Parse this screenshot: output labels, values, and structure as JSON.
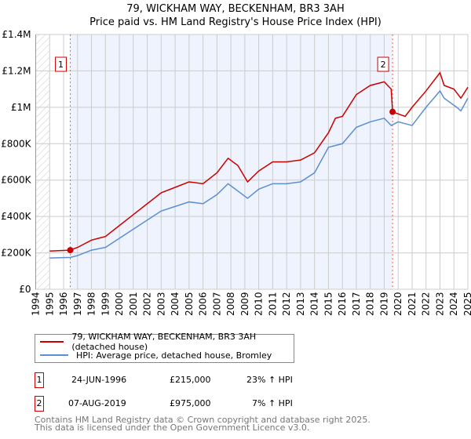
{
  "title_line1": "79, WICKHAM WAY, BECKENHAM, BR3 3AH",
  "title_line2": "Price paid vs. HM Land Registry's House Price Index (HPI)",
  "colors": {
    "property": "#cc0000",
    "hpi": "#5b8fd0",
    "shade": "#eef3fd"
  },
  "chart_data": {
    "type": "line",
    "title": "Price paid vs. HM Land Registry's House Price Index (HPI)",
    "xlim": [
      1994,
      2025
    ],
    "ylim": [
      0,
      1400000
    ],
    "x_ticks": [
      "1994",
      "1995",
      "1996",
      "1997",
      "1998",
      "1999",
      "2000",
      "2001",
      "2002",
      "2003",
      "2004",
      "2005",
      "2006",
      "2007",
      "2008",
      "2009",
      "2010",
      "2011",
      "2012",
      "2013",
      "2014",
      "2015",
      "2016",
      "2017",
      "2018",
      "2019",
      "2020",
      "2021",
      "2022",
      "2023",
      "2024",
      "2025"
    ],
    "y_ticks": [
      {
        "v": 0,
        "label": "£0"
      },
      {
        "v": 200000,
        "label": "£200K"
      },
      {
        "v": 400000,
        "label": "£400K"
      },
      {
        "v": 600000,
        "label": "£600K"
      },
      {
        "v": 800000,
        "label": "£800K"
      },
      {
        "v": 1000000,
        "label": "£1M"
      },
      {
        "v": 1200000,
        "label": "£1.2M"
      },
      {
        "v": 1400000,
        "label": "£1.4M"
      }
    ],
    "series": [
      {
        "name": "79, WICKHAM WAY, BECKENHAM, BR3 3AH (detached house)",
        "x": [
          1995,
          1996.48,
          1997,
          1998,
          1999,
          2000,
          2001,
          2002,
          2003,
          2004,
          2005,
          2006,
          2007,
          2007.8,
          2008.5,
          2009.2,
          2010,
          2011,
          2012,
          2013,
          2014,
          2015,
          2015.5,
          2016,
          2017,
          2018,
          2019,
          2019.5,
          2019.6,
          2020.5,
          2021,
          2022,
          2023,
          2023.3,
          2024,
          2024.5,
          2025
        ],
        "y": [
          210000,
          215000,
          230000,
          270000,
          290000,
          350000,
          410000,
          470000,
          530000,
          560000,
          590000,
          580000,
          640000,
          720000,
          680000,
          590000,
          650000,
          700000,
          700000,
          710000,
          750000,
          860000,
          940000,
          950000,
          1070000,
          1120000,
          1140000,
          1100000,
          975000,
          950000,
          1000000,
          1090000,
          1190000,
          1120000,
          1100000,
          1050000,
          1110000
        ]
      },
      {
        "name": "HPI: Average price, detached house, Bromley",
        "x": [
          1995,
          1996.48,
          1997,
          1998,
          1999,
          2000,
          2001,
          2002,
          2003,
          2004,
          2005,
          2006,
          2007,
          2007.8,
          2009.2,
          2010,
          2011,
          2012,
          2013,
          2014,
          2015,
          2016,
          2017,
          2018,
          2019,
          2019.5,
          2020,
          2021,
          2022,
          2023,
          2023.3,
          2024.2,
          2024.5,
          2025
        ],
        "y": [
          172000,
          175000,
          185000,
          215000,
          230000,
          280000,
          330000,
          380000,
          430000,
          455000,
          480000,
          470000,
          520000,
          580000,
          500000,
          550000,
          580000,
          580000,
          590000,
          640000,
          780000,
          800000,
          890000,
          920000,
          940000,
          900000,
          920000,
          900000,
          1000000,
          1090000,
          1050000,
          1000000,
          980000,
          1050000
        ]
      }
    ],
    "sales": [
      {
        "id": "1",
        "x": 1996.48,
        "y": 215000
      },
      {
        "id": "2",
        "x": 2019.6,
        "y": 975000
      }
    ],
    "grid": true
  },
  "legend": {
    "property": "79, WICKHAM WAY, BECKENHAM, BR3 3AH (detached house)",
    "hpi": "HPI: Average price, detached house, Bromley"
  },
  "sales_table": [
    {
      "id": "1",
      "date": "24-JUN-1996",
      "price": "£215,000",
      "hpi": "23% ↑ HPI"
    },
    {
      "id": "2",
      "date": "07-AUG-2019",
      "price": "£975,000",
      "hpi": "7% ↑ HPI"
    }
  ],
  "footer": {
    "line1": "Contains HM Land Registry data © Crown copyright and database right 2025.",
    "line2": "This data is licensed under the Open Government Licence v3.0."
  }
}
